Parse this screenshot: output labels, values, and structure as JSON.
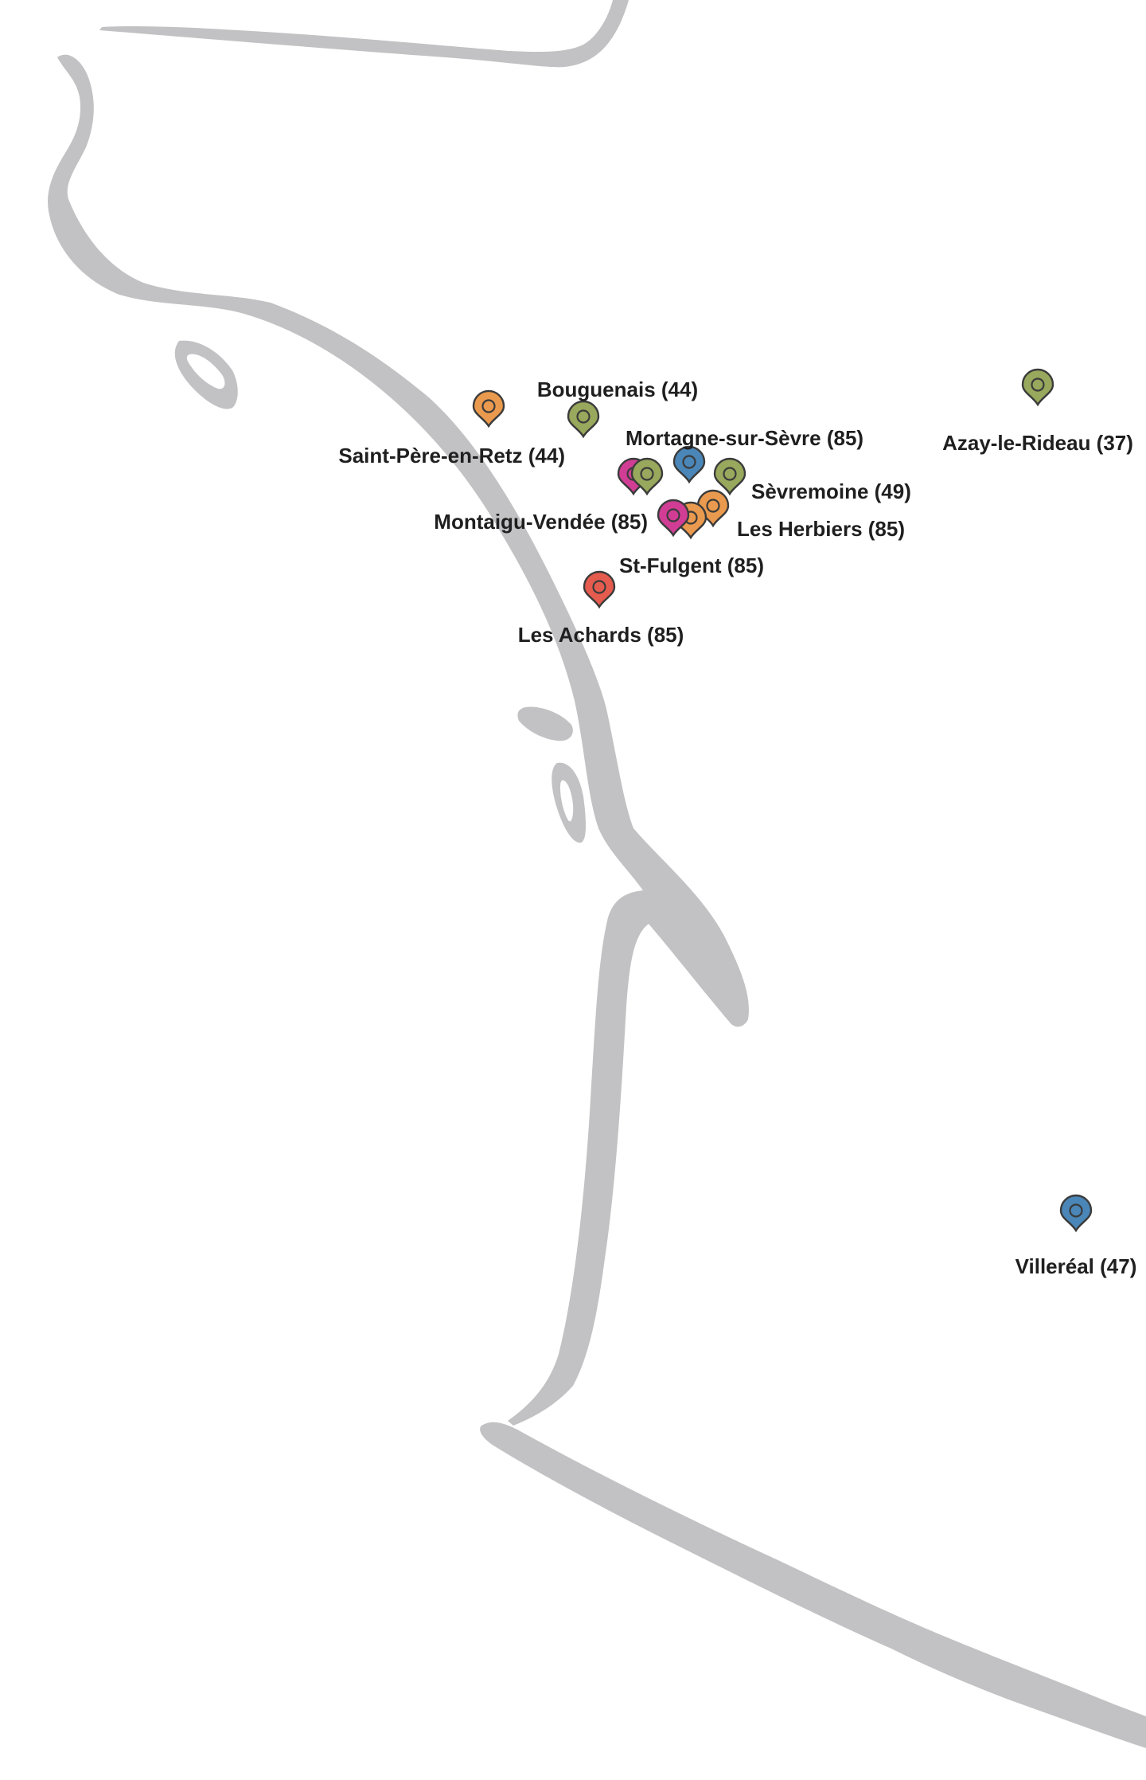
{
  "map": {
    "colors": {
      "coastline": "#c2c2c4",
      "background": "#ffffff",
      "label_text": "#1f1f1f",
      "pin_outline": "#3b3b3b"
    },
    "markers": [
      {
        "id": "bouguenais",
        "label": "Bouguenais (44)",
        "color": "#98a85c"
      },
      {
        "id": "saint-pere-en-retz",
        "label": "Saint-Père-en-Retz (44)",
        "color": "#ea9a4e"
      },
      {
        "id": "mortagne-sur-sevre",
        "label": "Mortagne-sur-Sèvre (85)",
        "color": "#4a86b8"
      },
      {
        "id": "azay-le-rideau",
        "label": "Azay-le-Rideau (37)",
        "color": "#98a85c"
      },
      {
        "id": "sevremoine",
        "label": "Sèvremoine (49)",
        "color": "#98a85c"
      },
      {
        "id": "montaigu-vendee",
        "label": "Montaigu-Vendée (85)",
        "color": "#d13d94"
      },
      {
        "id": "montaigu-vendee-2",
        "label": "",
        "color": "#98a85c"
      },
      {
        "id": "les-herbiers",
        "label": "Les Herbiers (85)",
        "color": "#ea9a4e"
      },
      {
        "id": "st-fulgent",
        "label": "St-Fulgent (85)",
        "color": "#ea9a4e"
      },
      {
        "id": "st-fulgent-2",
        "label": "",
        "color": "#d13d94"
      },
      {
        "id": "les-achards",
        "label": "Les Achards (85)",
        "color": "#e55c4f"
      },
      {
        "id": "villereal",
        "label": "Villeréal (47)",
        "color": "#4a86b8"
      }
    ]
  }
}
